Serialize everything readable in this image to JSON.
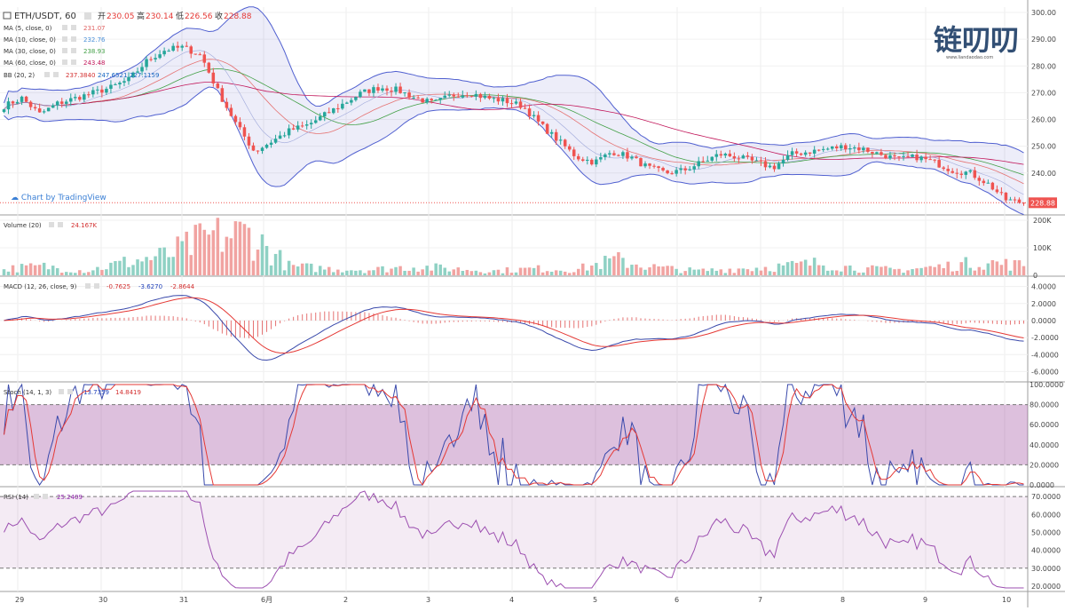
{
  "header": {
    "symbol": "ETH/USDT, 60",
    "open_label": "开",
    "open": "230.05",
    "high_label": "高",
    "high": "230.14",
    "low_label": "低",
    "low": "226.56",
    "close_label": "收",
    "close": "228.88"
  },
  "indicators": {
    "ma5": {
      "label": "MA (5, close, 0)",
      "value": "231.07",
      "color": "#e06060"
    },
    "ma10": {
      "label": "MA (10, close, 0)",
      "value": "232.76",
      "color": "#4a90d9"
    },
    "ma30": {
      "label": "MA (30, close, 0)",
      "value": "238.93",
      "color": "#43a047"
    },
    "ma60": {
      "label": "MA (60, close, 0)",
      "value": "243.48",
      "color": "#c2185b"
    },
    "bb": {
      "label": "BB (20, 2)",
      "values": [
        "237.3840",
        "247.6521",
        "227.1159"
      ],
      "colors": [
        "#d32f2f",
        "#1565c0",
        "#1565c0"
      ]
    },
    "volume": {
      "label": "Volume (20)",
      "value": "24.167K",
      "color": "#d32f2f"
    },
    "macd": {
      "label": "MACD (12, 26, close, 9)",
      "values": [
        "-0.7625",
        "-3.6270",
        "-2.8644"
      ],
      "colors": [
        "#d32f2f",
        "#1e3fb8",
        "#d32f2f"
      ]
    },
    "stoch": {
      "label": "Stoch (14, 1, 3)",
      "values": [
        "13.7359",
        "14.8419"
      ],
      "colors": [
        "#1e3fb8",
        "#d32f2f"
      ]
    },
    "rsi": {
      "label": "RSI (14)",
      "value": "25.2409",
      "color": "#8e24aa"
    }
  },
  "watermark": {
    "text": "链叨叨",
    "url": "www.liandaodao.com"
  },
  "tradingview_label": "Chart by TradingView",
  "last_price_tag": "228.88",
  "axes": {
    "price_ticks": [
      "300.00",
      "290.00",
      "280.00",
      "270.00",
      "260.00",
      "250.00",
      "240.00"
    ],
    "volume_ticks": [
      "200K",
      "100K",
      "0"
    ],
    "macd_ticks": [
      "4.0000",
      "2.0000",
      "0.0000",
      "-2.0000",
      "-4.0000",
      "-6.0000"
    ],
    "stoch_ticks": [
      "100.0000",
      "80.0000",
      "60.0000",
      "40.0000",
      "20.0000",
      "0.0000"
    ],
    "rsi_ticks": [
      "70.0000",
      "60.0000",
      "50.0000",
      "40.0000",
      "30.0000",
      "20.0000"
    ],
    "time_ticks": [
      "29",
      "30",
      "31",
      "6月",
      "2",
      "3",
      "4",
      "5",
      "6",
      "7",
      "8",
      "9",
      "10"
    ]
  },
  "chart_data": {
    "type": "candlestick",
    "symbol": "ETH/USDT",
    "interval": "60",
    "y_range": [
      225,
      302
    ],
    "close_series_approx": [
      265,
      268,
      262,
      266,
      268,
      270,
      272,
      275,
      282,
      286,
      287,
      284,
      270,
      258,
      248,
      252,
      256,
      258,
      262,
      266,
      270,
      272,
      271,
      268,
      266,
      269,
      270,
      268,
      267,
      265,
      258,
      252,
      246,
      244,
      248,
      246,
      242,
      240,
      241,
      244,
      247,
      246,
      244,
      242,
      247,
      248,
      249,
      250,
      249,
      247,
      245,
      246,
      244,
      241,
      240,
      236,
      230,
      228.88
    ],
    "overlay_bands": [
      "BB upper",
      "BB basis",
      "BB lower",
      "MA 5",
      "MA 10",
      "MA 30",
      "MA 60"
    ],
    "volume_k_approx": [
      30,
      40,
      20,
      60,
      90,
      170,
      190,
      40,
      30,
      25,
      40,
      30,
      20,
      30,
      25,
      70,
      35,
      20,
      30,
      40,
      55,
      30,
      25,
      40,
      60,
      45
    ],
    "macd_range": [
      -7,
      5
    ],
    "stoch_bands": [
      20,
      80
    ],
    "rsi_bands": [
      30,
      70
    ]
  }
}
